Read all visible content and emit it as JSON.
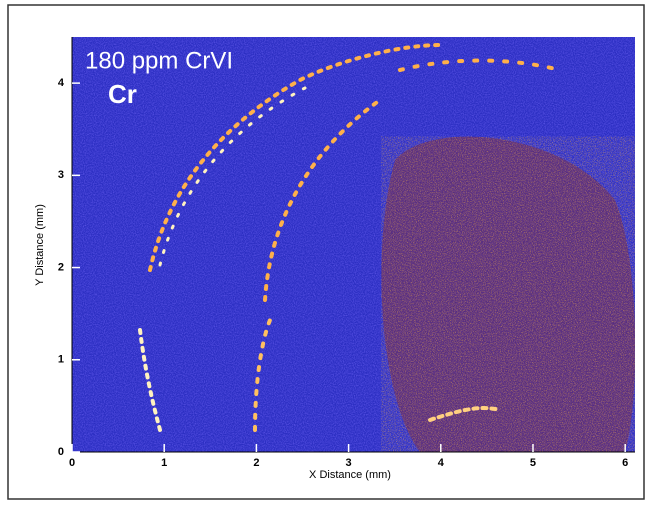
{
  "chart_data": {
    "type": "image",
    "title": "180 ppm CrVI",
    "subtitle": "Cr",
    "x_label": "X Distance (mm)",
    "y_label": "Y Distance (mm)",
    "xlim": [
      0,
      6.1
    ],
    "ylim": [
      0,
      4.5
    ],
    "xticks": [
      0,
      1,
      2,
      3,
      4,
      5,
      6
    ],
    "yticks": [
      0,
      1,
      2,
      3,
      4
    ]
  }
}
